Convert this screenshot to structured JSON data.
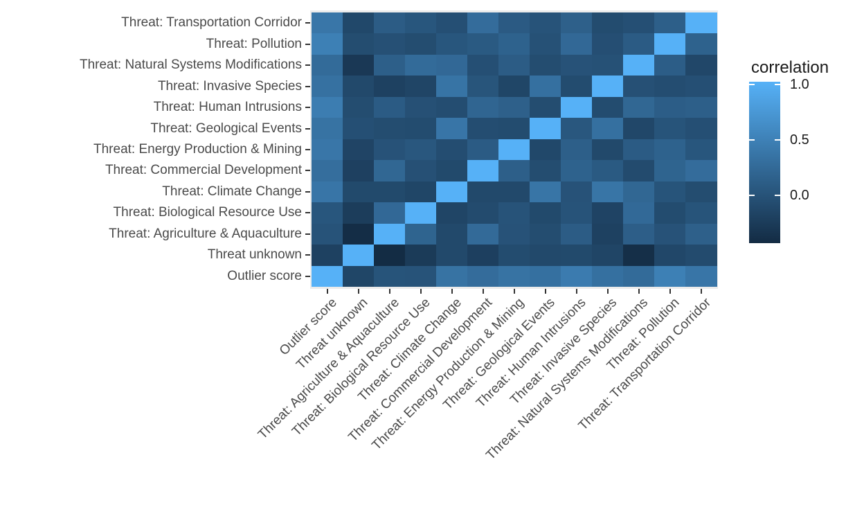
{
  "figure": {
    "background_color": "#FFFFFF",
    "panel_background_color": "#EBEBEB",
    "axis_text_color": "#4A4A4A",
    "tick_color": "#333333"
  },
  "legend": {
    "title": "correlation",
    "ticks": [
      {
        "label": "1.0",
        "value": 1.0
      },
      {
        "label": "0.5",
        "value": 0.5
      },
      {
        "label": "0.0",
        "value": 0.0
      }
    ]
  },
  "chart_data": {
    "type": "heatmap",
    "title": "",
    "xlabel": "",
    "ylabel": "",
    "legend_title": "correlation",
    "grid": "off",
    "legend_position": "right",
    "x_categories": [
      "Outlier score",
      "Threat unknown",
      "Threat: Agriculture & Aquaculture",
      "Threat: Biological Resource Use",
      "Threat: Climate Change",
      "Threat: Commercial Development",
      "Threat: Energy Production & Mining",
      "Threat: Geological Events",
      "Threat: Human Intrusions",
      "Threat: Invasive Species",
      "Threat: Natural Systems Modifications",
      "Threat: Pollution",
      "Threat: Transportation Corridor"
    ],
    "y_categories_top_to_bottom": [
      "Threat: Transportation Corridor",
      "Threat: Pollution",
      "Threat: Natural Systems Modifications",
      "Threat: Invasive Species",
      "Threat: Human Intrusions",
      "Threat: Geological Events",
      "Threat: Energy Production & Mining",
      "Threat: Commercial Development",
      "Threat: Climate Change",
      "Threat: Biological Resource Use",
      "Threat: Agriculture & Aquaculture",
      "Threat unknown",
      "Outlier score"
    ],
    "values_rows_top_to_bottom": [
      [
        0.37,
        -0.13,
        0.09,
        0.02,
        -0.05,
        0.26,
        0.07,
        -0.01,
        0.13,
        -0.09,
        -0.05,
        0.12,
        1.0
      ],
      [
        0.47,
        -0.08,
        -0.04,
        -0.08,
        0.02,
        0.06,
        0.15,
        -0.03,
        0.22,
        -0.06,
        0.08,
        1.0,
        0.15
      ],
      [
        0.25,
        -0.3,
        0.12,
        0.25,
        0.22,
        -0.05,
        0.09,
        -0.08,
        -0.02,
        -0.03,
        1.0,
        0.1,
        -0.14
      ],
      [
        0.31,
        -0.12,
        -0.2,
        -0.16,
        0.34,
        0.01,
        -0.15,
        0.3,
        -0.09,
        1.0,
        -0.04,
        -0.07,
        -0.05
      ],
      [
        0.44,
        -0.08,
        0.08,
        -0.04,
        -0.07,
        0.18,
        0.13,
        -0.08,
        1.0,
        -0.09,
        0.2,
        0.1,
        0.12
      ],
      [
        0.33,
        -0.05,
        -0.08,
        -0.09,
        0.36,
        -0.07,
        -0.09,
        1.0,
        0.03,
        0.3,
        -0.14,
        0.0,
        -0.05
      ],
      [
        0.37,
        -0.17,
        -0.02,
        0.03,
        -0.07,
        0.08,
        1.0,
        -0.13,
        0.12,
        -0.12,
        0.08,
        0.15,
        0.02
      ],
      [
        0.28,
        -0.21,
        0.2,
        -0.04,
        -0.11,
        1.0,
        0.12,
        -0.08,
        0.15,
        0.06,
        -0.1,
        0.17,
        0.26
      ],
      [
        0.36,
        -0.11,
        -0.11,
        -0.15,
        1.0,
        -0.12,
        -0.12,
        0.35,
        -0.02,
        0.35,
        0.2,
        0.0,
        -0.08
      ],
      [
        0.02,
        -0.25,
        0.22,
        1.0,
        -0.16,
        -0.1,
        -0.01,
        -0.11,
        -0.01,
        -0.18,
        0.23,
        -0.09,
        0.0
      ],
      [
        -0.01,
        -0.42,
        1.0,
        0.17,
        -0.12,
        0.24,
        -0.02,
        -0.08,
        0.09,
        -0.2,
        0.11,
        -0.02,
        0.13
      ],
      [
        -0.2,
        1.0,
        -0.43,
        -0.27,
        -0.12,
        -0.22,
        -0.09,
        -0.12,
        -0.11,
        -0.16,
        -0.4,
        -0.14,
        -0.1
      ],
      [
        1.0,
        -0.15,
        0.0,
        -0.01,
        0.33,
        0.26,
        0.33,
        0.3,
        0.42,
        0.3,
        0.25,
        0.47,
        0.36
      ]
    ],
    "color_scale": {
      "type": "linear",
      "low_color": "#132B43",
      "high_color": "#56B1F7",
      "domain_min": -0.44,
      "domain_max": 1.0
    }
  }
}
